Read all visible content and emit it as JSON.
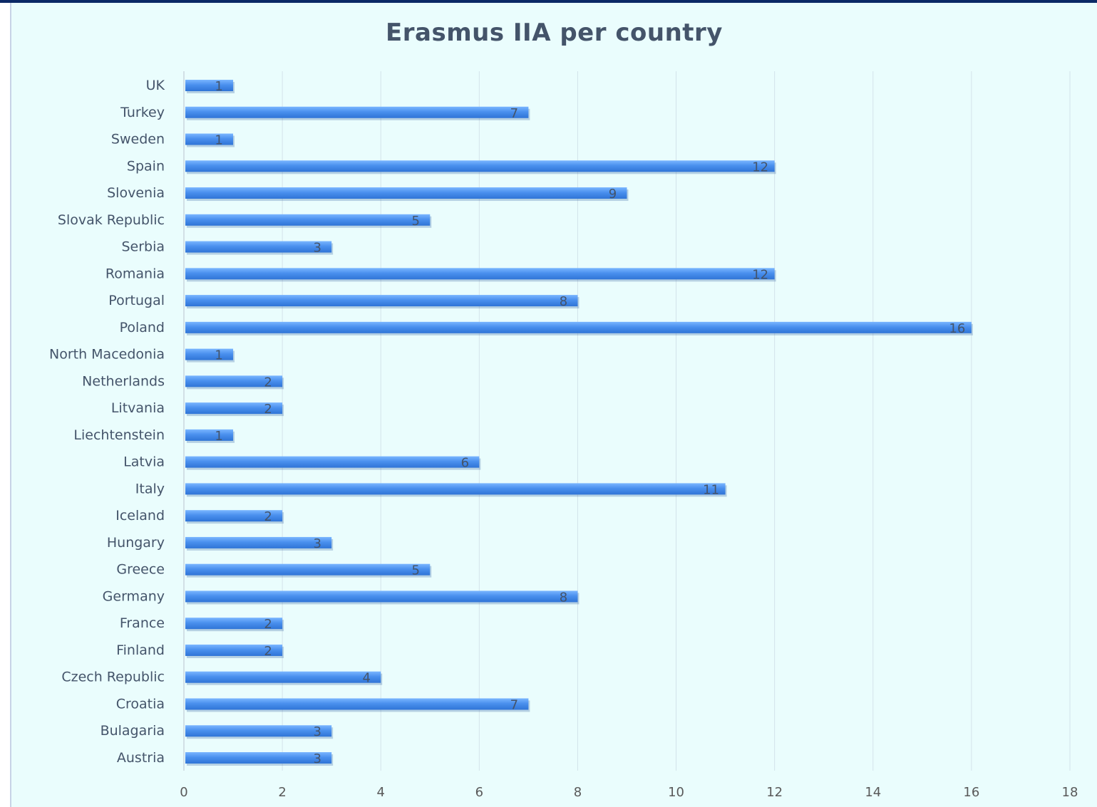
{
  "chart_data": {
    "type": "bar",
    "orientation": "horizontal",
    "title": "Erasmus IIA per country",
    "xlabel": "",
    "ylabel": "",
    "categories": [
      "UK",
      "Turkey",
      "Sweden",
      "Spain",
      "Slovenia",
      "Slovak Republic",
      "Serbia",
      "Romania",
      "Portugal",
      "Poland",
      "North Macedonia",
      "Netherlands",
      "Litvania",
      "Liechtenstein",
      "Latvia",
      "Italy",
      "Iceland",
      "Hungary",
      "Greece",
      "Germany",
      "France",
      "Finland",
      "Czech Republic",
      "Croatia",
      "Bulagaria",
      "Austria"
    ],
    "values": [
      1,
      7,
      1,
      12,
      9,
      5,
      3,
      12,
      8,
      16,
      1,
      2,
      2,
      1,
      6,
      11,
      2,
      3,
      5,
      8,
      2,
      2,
      4,
      7,
      3,
      3
    ],
    "xlim": [
      0,
      18
    ],
    "xticks": [
      0,
      2,
      4,
      6,
      8,
      10,
      12,
      14,
      16,
      18
    ],
    "grid": "vertical",
    "data_labels": true,
    "legend": "none",
    "bar_color": "#4a90ee",
    "background_color": "#eafdfd"
  }
}
